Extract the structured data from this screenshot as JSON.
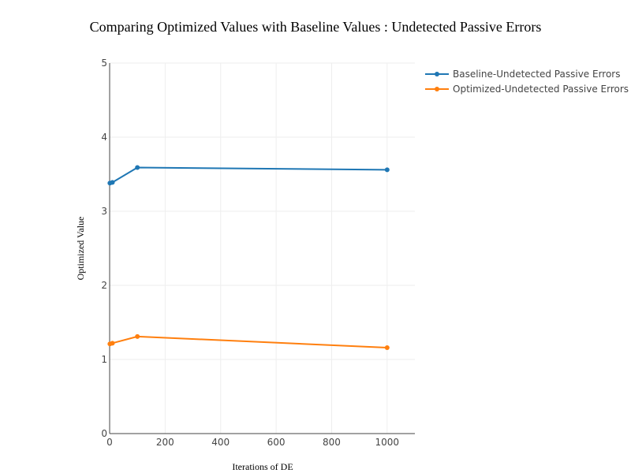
{
  "chart_data": {
    "type": "line",
    "title": "Comparing Optimized Values with Baseline Values : Undetected Passive Errors",
    "xlabel": "Iterations of DE",
    "ylabel": "Optimized Value",
    "xlim": [
      0,
      1100
    ],
    "ylim": [
      0,
      5
    ],
    "xticks": [
      0,
      200,
      400,
      600,
      800,
      1000
    ],
    "yticks": [
      0,
      1,
      2,
      3,
      4,
      5
    ],
    "grid": true,
    "legend_position": "top-right",
    "series": [
      {
        "name": "Baseline-Undetected Passive Errors",
        "color": "#1f77b4",
        "x": [
          1,
          10,
          100,
          1000
        ],
        "y": [
          3.38,
          3.39,
          3.59,
          3.56
        ]
      },
      {
        "name": "Optimized-Undetected Passive Errors",
        "color": "#ff7f0e",
        "x": [
          1,
          10,
          100,
          1000
        ],
        "y": [
          1.21,
          1.22,
          1.31,
          1.16
        ]
      }
    ]
  }
}
